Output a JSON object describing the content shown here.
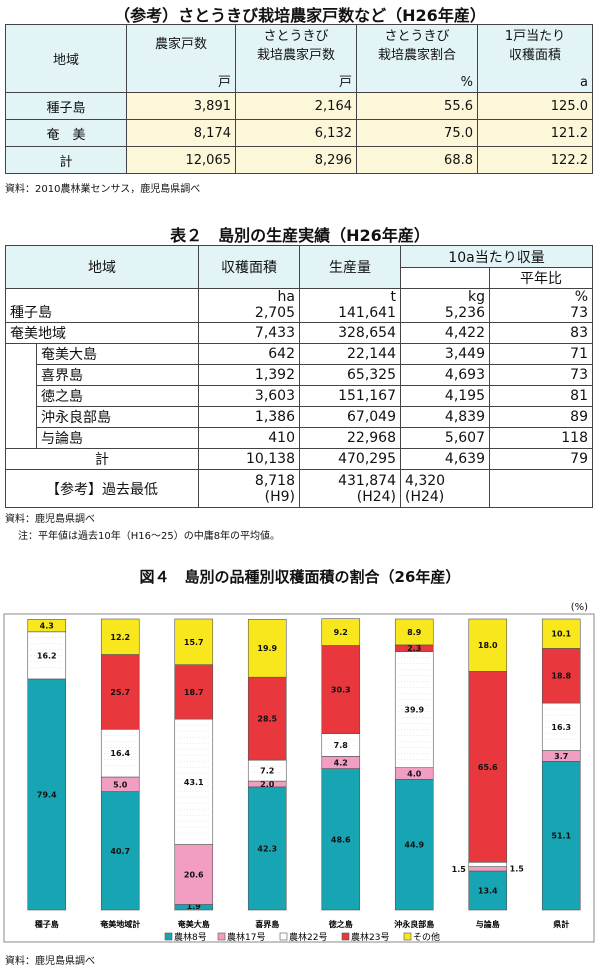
{
  "table1": {
    "title": "（参考）さとうきび栽培農家戸数など（H26年産）",
    "headers": {
      "region": "地域",
      "farms": "農家戸数",
      "farms_unit": "戸",
      "cane_farms_1": "さとうきび",
      "cane_farms_2": "栽培農家戸数",
      "cane_farms_unit": "戸",
      "ratio_1": "さとうきび",
      "ratio_2": "栽培農家割合",
      "ratio_unit": "%",
      "area_1": "1戸当たり",
      "area_2": "収穫面積",
      "area_unit": "a"
    },
    "rows": [
      {
        "region": "種子島",
        "farms": "3,891",
        "cane": "2,164",
        "ratio": "55.6",
        "area": "125.0"
      },
      {
        "region": "奄　美",
        "farms": "8,174",
        "cane": "6,132",
        "ratio": "75.0",
        "area": "121.2"
      },
      {
        "region": "計",
        "farms": "12,065",
        "cane": "8,296",
        "ratio": "68.8",
        "area": "122.2"
      }
    ],
    "source": "資料：2010農林業センサス，鹿児島県調べ"
  },
  "table2": {
    "title": "表２　島別の生産実績（H26年産）",
    "headers": {
      "region": "地域",
      "area": "収穫面積",
      "production": "生産量",
      "yield": "10a当たり収量",
      "avg": "平年比"
    },
    "units": {
      "area": "ha",
      "production": "t",
      "yield": "kg",
      "avg": "%"
    },
    "rows": [
      {
        "name": "種子島",
        "area": "2,705",
        "production": "141,641",
        "yield": "5,236",
        "avg": "73",
        "indent": false
      },
      {
        "name": "奄美地域",
        "area": "7,433",
        "production": "328,654",
        "yield": "4,422",
        "avg": "83",
        "indent": false
      },
      {
        "name": "奄美大島",
        "area": "642",
        "production": "22,144",
        "yield": "3,449",
        "avg": "71",
        "indent": true
      },
      {
        "name": "喜界島",
        "area": "1,392",
        "production": "65,325",
        "yield": "4,693",
        "avg": "73",
        "indent": true
      },
      {
        "name": "徳之島",
        "area": "3,603",
        "production": "151,167",
        "yield": "4,195",
        "avg": "81",
        "indent": true
      },
      {
        "name": "沖永良部島",
        "area": "1,386",
        "production": "67,049",
        "yield": "4,839",
        "avg": "89",
        "indent": true
      },
      {
        "name": "与論島",
        "area": "410",
        "production": "22,968",
        "yield": "5,607",
        "avg": "118",
        "indent": true
      }
    ],
    "total": {
      "name": "計",
      "area": "10,138",
      "production": "470,295",
      "yield": "4,639",
      "avg": "79"
    },
    "ref": {
      "name": "【参考】過去最低",
      "area": "8,718",
      "area_year": "(H9)",
      "production": "431,874",
      "production_year": "(H24)",
      "yield": "4,320",
      "yield_year": "(H24)"
    },
    "source": "資料：鹿児島県調べ",
    "note": "注：平年値は過去10年（H16～25）の中庸8年の平均値。"
  },
  "figure": {
    "title": "図４　島別の品種別収穫面積の割合（26年産）",
    "unit": "(%)",
    "source": "資料：鹿児島県調べ"
  },
  "chart_data": {
    "type": "bar",
    "stacked": true,
    "categories": [
      "種子島",
      "奄美地域計",
      "奄美大島",
      "喜界島",
      "徳之島",
      "沖永良部島",
      "与論島",
      "県計"
    ],
    "series": [
      {
        "name": "農林8号",
        "color": "#17a5b4",
        "values": [
          79.4,
          40.7,
          1.9,
          42.3,
          48.6,
          44.9,
          13.4,
          51.1
        ]
      },
      {
        "name": "農林17号",
        "color": "#f19ec2",
        "values": [
          0,
          5.0,
          20.6,
          2.0,
          4.2,
          4.0,
          1.5,
          3.7
        ]
      },
      {
        "name": "農林22号",
        "color": "#ffffff",
        "values": [
          16.2,
          16.4,
          43.1,
          7.2,
          7.8,
          39.9,
          1.5,
          16.3
        ]
      },
      {
        "name": "農林23号",
        "color": "#e8383d",
        "values": [
          0,
          25.7,
          18.7,
          28.5,
          30.3,
          2.3,
          65.6,
          18.8
        ]
      },
      {
        "name": "その他",
        "color": "#f8e71c",
        "values": [
          4.3,
          12.2,
          15.7,
          19.9,
          9.2,
          8.9,
          18.0,
          10.1
        ]
      }
    ],
    "data_labels": [
      [
        "79.4",
        "",
        "16.2",
        "",
        "4.3"
      ],
      [
        "40.7",
        "5.0",
        "16.4",
        "25.7",
        "12.2"
      ],
      [
        "1.9",
        "20.6",
        "43.1",
        "18.7",
        "15.7"
      ],
      [
        "42.3",
        "2.0",
        "7.2",
        "28.5",
        "19.9"
      ],
      [
        "48.6",
        "4.2",
        "7.8",
        "30.3",
        "9.2"
      ],
      [
        "44.9",
        "4.0",
        "39.9",
        "2.3",
        "8.9"
      ],
      [
        "13.4",
        "1.5",
        "1.5",
        "65.6",
        "18.0"
      ],
      [
        "51.1",
        "3.7",
        "16.3",
        "18.8",
        "10.1"
      ]
    ],
    "ylim": [
      0,
      100
    ],
    "legend_position": "bottom"
  }
}
